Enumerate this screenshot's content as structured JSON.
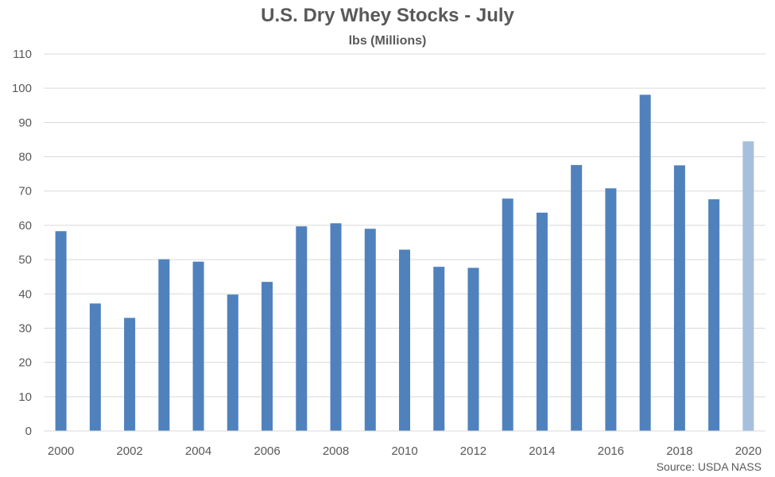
{
  "chart_data": {
    "type": "bar",
    "title": "U.S. Dry Whey Stocks - July",
    "subtitle": "lbs (Millions)",
    "source": "Source: USDA NASS",
    "categories": [
      "2000",
      "2001",
      "2002",
      "2003",
      "2004",
      "2005",
      "2006",
      "2007",
      "2008",
      "2009",
      "2010",
      "2011",
      "2012",
      "2013",
      "2014",
      "2015",
      "2016",
      "2017",
      "2018",
      "2019",
      "2020"
    ],
    "x_tick_labels": [
      "2000",
      "2002",
      "2004",
      "2006",
      "2008",
      "2010",
      "2012",
      "2014",
      "2016",
      "2018",
      "2020"
    ],
    "values": [
      58.3,
      37.2,
      33.0,
      50.1,
      49.4,
      39.8,
      43.5,
      59.7,
      60.6,
      59.0,
      52.9,
      47.9,
      47.6,
      67.8,
      63.7,
      77.6,
      70.8,
      98.1,
      77.5,
      67.6,
      84.5
    ],
    "ylim": [
      0,
      110
    ],
    "yticks": [
      0,
      10,
      20,
      30,
      40,
      50,
      60,
      70,
      80,
      90,
      100,
      110
    ],
    "grid": true,
    "colors": {
      "bar": "#4F81BD",
      "highlight_bar": "#A7BFDE",
      "gridline": "#D9D9D9",
      "text": "#595959"
    },
    "highlight_category": "2020"
  }
}
